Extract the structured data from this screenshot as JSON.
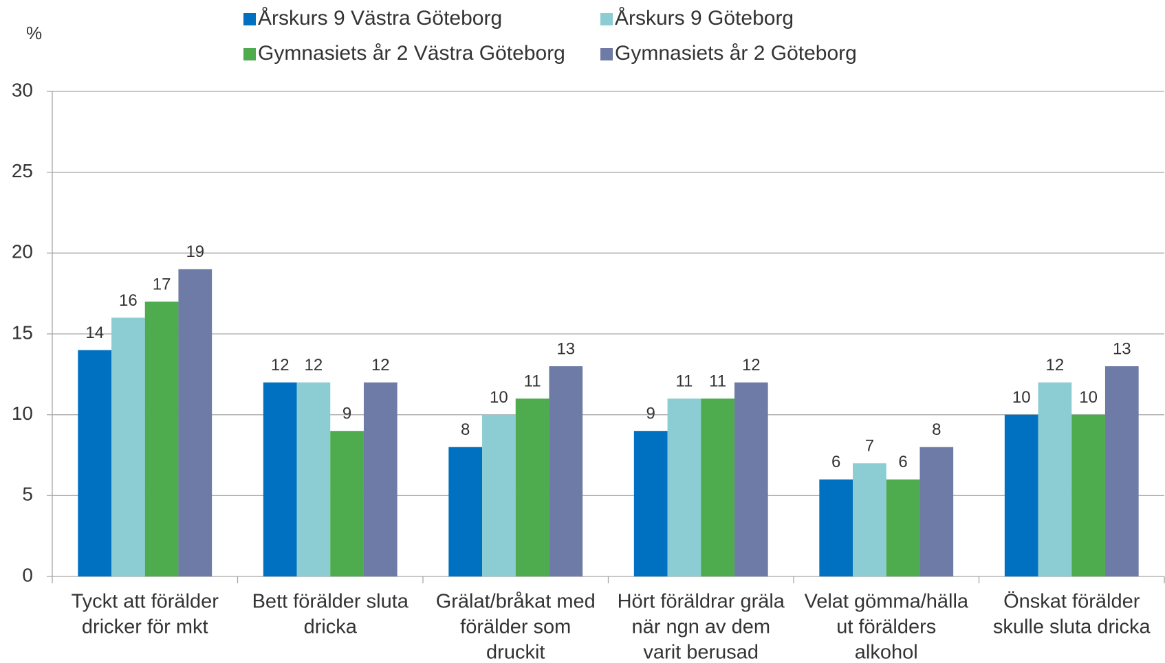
{
  "chart_data": {
    "type": "bar",
    "y_label": "%",
    "categories": [
      [
        "Tyckt att förälder",
        "dricker för mkt"
      ],
      [
        "Bett förälder sluta",
        "dricka"
      ],
      [
        "Grälat/bråkat med",
        "förälder som",
        "druckit"
      ],
      [
        "Hört föräldrar gräla",
        "när ngn av dem",
        "varit berusad"
      ],
      [
        "Velat gömma/hälla",
        "ut förälders",
        "alkohol"
      ],
      [
        "Önskat förälder",
        "skulle sluta dricka"
      ]
    ],
    "series": [
      {
        "name": "Årskurs 9 Västra Göteborg",
        "color": "#0070c0",
        "values": [
          14,
          12,
          8,
          9,
          6,
          10
        ]
      },
      {
        "name": "Årskurs 9 Göteborg",
        "color": "#8bcdd3",
        "values": [
          16,
          12,
          10,
          11,
          7,
          12
        ]
      },
      {
        "name": "Gymnasiets år 2 Västra Göteborg",
        "color": "#4eab4e",
        "values": [
          17,
          9,
          11,
          11,
          6,
          10
        ]
      },
      {
        "name": "Gymnasiets år 2  Göteborg",
        "color": "#6f7ba7",
        "values": [
          19,
          12,
          13,
          12,
          8,
          13
        ]
      }
    ],
    "ylim": [
      0,
      30
    ],
    "yticks": [
      0,
      5,
      10,
      15,
      20,
      25,
      30
    ],
    "grid": true
  }
}
